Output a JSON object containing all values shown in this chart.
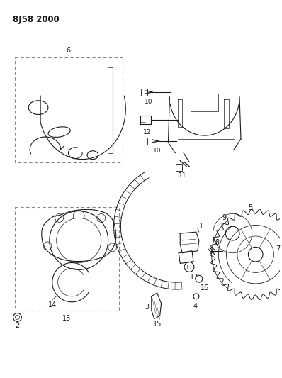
{
  "title": "8J58 2000",
  "bg_color": "#ffffff",
  "line_color": "#1a1a1a",
  "title_fontsize": 8.5,
  "figsize": [
    3.98,
    5.33
  ],
  "dpi": 100
}
